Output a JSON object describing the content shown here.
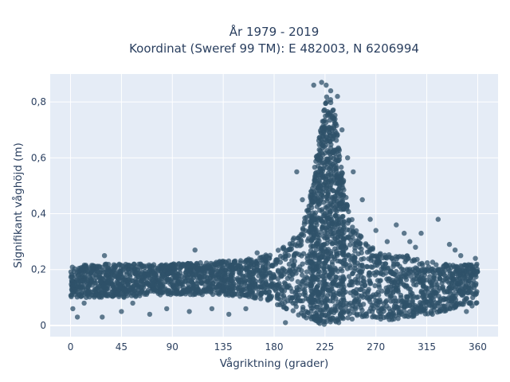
{
  "chart_data": {
    "type": "scatter",
    "title_lines": [
      "År 1979 - 2019",
      "Koordinat (Sweref 99 TM): E 482003, N 6206994"
    ],
    "xlabel": "Vågriktning (grader)",
    "ylabel": "Signifikant våghöjd (m)",
    "xlim": [
      -18,
      378
    ],
    "ylim": [
      -0.04,
      0.9
    ],
    "xticks": [
      0,
      45,
      90,
      135,
      180,
      225,
      270,
      315,
      360
    ],
    "xtick_labels": [
      "0",
      "45",
      "90",
      "135",
      "180",
      "225",
      "270",
      "315",
      "360"
    ],
    "yticks": [
      0,
      0.2,
      0.4,
      0.6,
      0.8
    ],
    "ytick_labels": [
      "0",
      "0,2",
      "0,4",
      "0,6",
      "0,8"
    ],
    "grid": true,
    "legend": "none",
    "colors": {
      "marker": "#2f5269",
      "plot_bg": "#e5ecf6",
      "grid": "#ffffff",
      "text": "#2a3f5f"
    },
    "series": [
      {
        "envelope": {
          "x": [
            0,
            20,
            45,
            90,
            135,
            160,
            180,
            195,
            205,
            212,
            218,
            222,
            226,
            230,
            234,
            238,
            242,
            246,
            250,
            255,
            260,
            270,
            285,
            300,
            315,
            330,
            345,
            360
          ],
          "y_low": [
            0.1,
            0.1,
            0.1,
            0.11,
            0.11,
            0.1,
            0.08,
            0.05,
            0.03,
            0.02,
            0.01,
            0.0,
            0.0,
            0.01,
            0.01,
            0.01,
            0.02,
            0.02,
            0.02,
            0.02,
            0.02,
            0.02,
            0.02,
            0.03,
            0.04,
            0.05,
            0.07,
            0.08
          ],
          "y_high": [
            0.21,
            0.22,
            0.22,
            0.22,
            0.23,
            0.24,
            0.26,
            0.3,
            0.36,
            0.47,
            0.62,
            0.74,
            0.82,
            0.81,
            0.76,
            0.62,
            0.5,
            0.42,
            0.37,
            0.33,
            0.3,
            0.27,
            0.25,
            0.25,
            0.23,
            0.22,
            0.22,
            0.22
          ]
        },
        "outliers": [
          [
            2,
            0.06
          ],
          [
            6,
            0.03
          ],
          [
            12,
            0.08
          ],
          [
            28,
            0.03
          ],
          [
            30,
            0.25
          ],
          [
            45,
            0.05
          ],
          [
            55,
            0.08
          ],
          [
            70,
            0.04
          ],
          [
            85,
            0.06
          ],
          [
            105,
            0.05
          ],
          [
            110,
            0.27
          ],
          [
            125,
            0.06
          ],
          [
            140,
            0.04
          ],
          [
            155,
            0.06
          ],
          [
            165,
            0.26
          ],
          [
            190,
            0.01
          ],
          [
            200,
            0.55
          ],
          [
            205,
            0.45
          ],
          [
            215,
            0.86
          ],
          [
            222,
            0.87
          ],
          [
            226,
            0.86
          ],
          [
            230,
            0.84
          ],
          [
            236,
            0.82
          ],
          [
            240,
            0.7
          ],
          [
            245,
            0.6
          ],
          [
            250,
            0.55
          ],
          [
            258,
            0.45
          ],
          [
            265,
            0.38
          ],
          [
            270,
            0.34
          ],
          [
            280,
            0.3
          ],
          [
            288,
            0.36
          ],
          [
            295,
            0.33
          ],
          [
            300,
            0.3
          ],
          [
            305,
            0.28
          ],
          [
            310,
            0.33
          ],
          [
            325,
            0.38
          ],
          [
            335,
            0.29
          ],
          [
            340,
            0.27
          ],
          [
            345,
            0.25
          ],
          [
            350,
            0.05
          ],
          [
            355,
            0.07
          ],
          [
            358,
            0.24
          ],
          [
            300,
            0.05
          ],
          [
            320,
            0.04
          ],
          [
            330,
            0.07
          ]
        ]
      }
    ]
  }
}
